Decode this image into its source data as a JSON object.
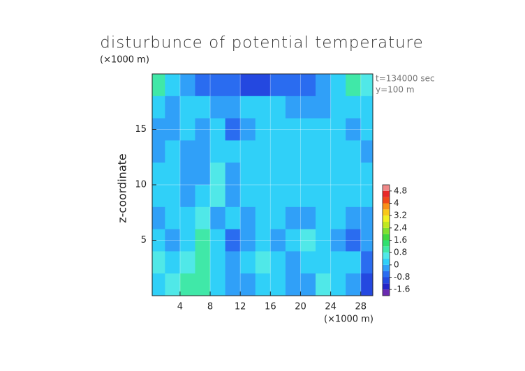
{
  "chart_data": {
    "type": "contour",
    "title": "disturbunce of potential temperature",
    "ylabel_unit": "(×1000 m)",
    "xlabel": "(×1000 m)",
    "ylabel": "z-coordinate",
    "annotations": [
      "t=134000 sec",
      "y=100 m"
    ],
    "x": [
      1,
      3,
      5,
      7,
      9,
      11,
      13,
      15,
      17,
      19,
      21,
      23,
      25,
      27,
      29
    ],
    "y": [
      19,
      17,
      15,
      13,
      11,
      9,
      7,
      5,
      3,
      1
    ],
    "z": [
      [
        1.0,
        0.3,
        -0.3,
        -0.6,
        -0.8,
        -0.8,
        -1.0,
        -0.9,
        -0.7,
        -0.6,
        -0.5,
        -0.3,
        0.3,
        0.9,
        0.6
      ],
      [
        0.2,
        -0.3,
        0.3,
        0.1,
        -0.4,
        -0.2,
        0.2,
        0.3,
        0.1,
        -0.2,
        -0.3,
        -0.2,
        0.1,
        0.2,
        0.1
      ],
      [
        -0.4,
        -0.1,
        0.3,
        -0.3,
        0.2,
        -0.5,
        -0.4,
        0.1,
        0.2,
        0.3,
        0.3,
        0.2,
        0.0,
        -0.2,
        0.1
      ],
      [
        -0.3,
        0.2,
        -0.4,
        -0.2,
        0.3,
        0.1,
        0.2,
        0.3,
        0.2,
        0.1,
        0.2,
        0.3,
        0.2,
        0.1,
        -0.2
      ],
      [
        0.1,
        0.3,
        -0.3,
        -0.1,
        0.4,
        -0.2,
        0.1,
        0.2,
        0.0,
        0.1,
        0.2,
        0.1,
        0.0,
        0.1,
        0.0
      ],
      [
        0.2,
        0.3,
        -0.2,
        0.0,
        0.4,
        -0.1,
        0.1,
        0.2,
        0.1,
        0.2,
        0.1,
        0.0,
        0.1,
        0.2,
        0.1
      ],
      [
        -0.3,
        0.1,
        0.3,
        0.5,
        -0.3,
        0.1,
        -0.2,
        0.0,
        0.2,
        -0.4,
        -0.3,
        0.1,
        0.2,
        -0.1,
        -0.3
      ],
      [
        0.2,
        -0.4,
        0.3,
        0.9,
        0.3,
        -0.5,
        -0.4,
        0.1,
        -0.2,
        0.3,
        0.4,
        0.1,
        -0.4,
        -0.8,
        -0.4
      ],
      [
        0.6,
        0.3,
        0.6,
        0.8,
        0.2,
        -0.3,
        0.1,
        0.4,
        0.0,
        -0.4,
        0.2,
        0.1,
        0.2,
        0.1,
        -0.8
      ],
      [
        0.2,
        0.4,
        0.9,
        0.8,
        0.2,
        -0.2,
        -0.3,
        0.1,
        0.2,
        -0.3,
        -0.1,
        0.6,
        0.3,
        -0.2,
        -1.0
      ]
    ],
    "xlim": [
      0.3,
      29.6
    ],
    "ylim": [
      0,
      20
    ],
    "xticks": [
      4,
      8,
      12,
      16,
      20,
      24,
      28
    ],
    "yticks": [
      5,
      10,
      15
    ],
    "levels": [
      -2.0,
      -1.6,
      -1.2,
      -0.8,
      -0.4,
      0,
      0.4,
      0.8,
      1.2,
      1.6,
      2.0,
      2.4,
      2.8,
      3.2,
      3.6,
      4.0,
      4.4,
      4.8,
      5.2
    ],
    "colors": [
      "#6a2ab0",
      "#2424c8",
      "#2448e0",
      "#2a6cf0",
      "#30a0f8",
      "#30d0f8",
      "#50e8e8",
      "#40e8a8",
      "#30e070",
      "#40d840",
      "#80e030",
      "#c0e820",
      "#f0f020",
      "#f8c818",
      "#f89018",
      "#f04818",
      "#e82828",
      "#f08888"
    ],
    "cbar_ticks": [
      4.8,
      4,
      3.2,
      2.4,
      1.6,
      0.8,
      0,
      -0.8,
      -1.6
    ],
    "grid": true
  }
}
